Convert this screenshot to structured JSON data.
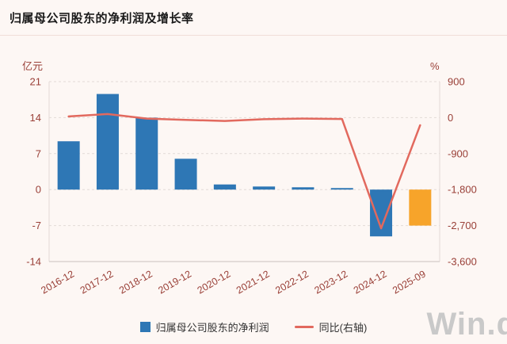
{
  "title": "归属母公司股东的净利润及增长率",
  "watermark": "Win.d",
  "colors": {
    "background": "#fdf7f4",
    "title": "#1a1a1a",
    "bar": "#2e77b5",
    "bar_highlight": "#f7a42a",
    "line": "#e2695e",
    "axis_text": "#9a4038",
    "grid": "#e2dad6",
    "axis_line": "#c9c2be",
    "legend_text": "#333333",
    "watermark": "#c9c9c9"
  },
  "chart_data": {
    "type": "combo-bar-line",
    "categories": [
      "2016-12",
      "2017-12",
      "2018-12",
      "2019-12",
      "2020-12",
      "2021-12",
      "2022-12",
      "2023-12",
      "2024-12",
      "2025-09"
    ],
    "series": [
      {
        "name": "归属母公司股东的净利润",
        "type": "bar",
        "axis": "left",
        "values": [
          9.4,
          18.6,
          14.0,
          6.0,
          1.0,
          0.6,
          0.45,
          0.3,
          -9.1,
          -7.0
        ]
      },
      {
        "name": "同比(右轴)",
        "type": "line",
        "axis": "right",
        "values": [
          30,
          90,
          -25,
          -57,
          -83,
          -40,
          -25,
          -33,
          -2770,
          -190
        ]
      }
    ],
    "highlight_index": 9,
    "left_axis": {
      "label": "亿元",
      "min": -14,
      "max": 21,
      "ticks": [
        21,
        14,
        7,
        0,
        -7,
        -14
      ]
    },
    "right_axis": {
      "label": "%",
      "min": -3600,
      "max": 900,
      "ticks": [
        900,
        0,
        -900,
        -1800,
        -2700,
        -3600
      ],
      "tick_labels": [
        "900",
        "0",
        "-900",
        "-1,800",
        "-2,700",
        "-3,600"
      ]
    },
    "grid": true,
    "legend_position": "bottom"
  }
}
